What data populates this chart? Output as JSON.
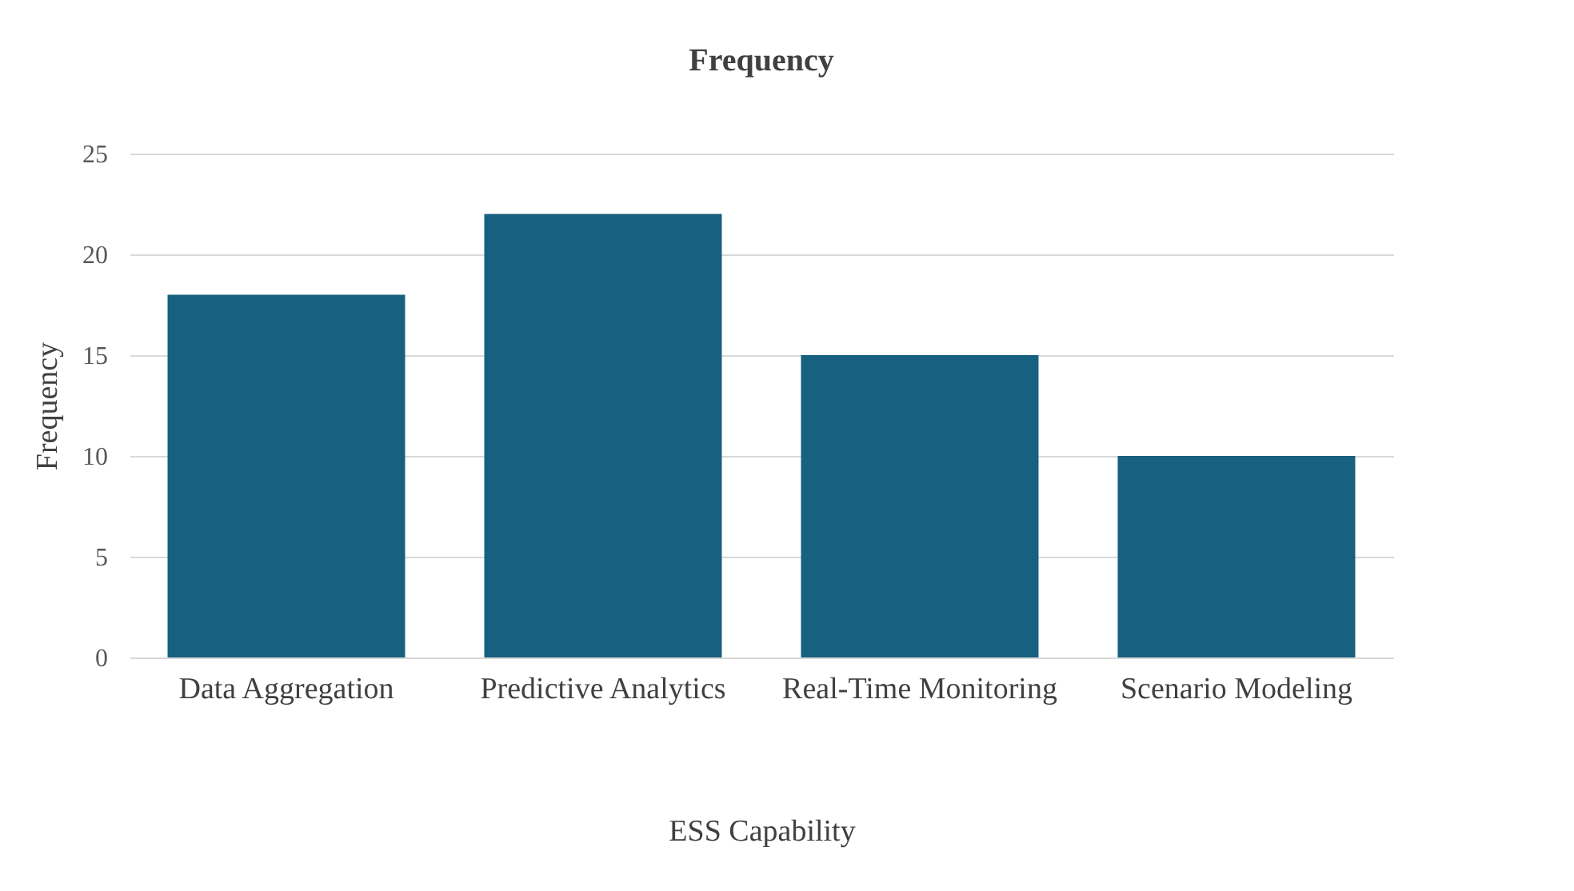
{
  "chart_data": {
    "type": "bar",
    "title": "Frequency",
    "xlabel": "ESS Capability",
    "ylabel": "Frequency",
    "categories": [
      "Data Aggregation",
      "Predictive Analytics",
      "Real-Time Monitoring",
      "Scenario Modeling"
    ],
    "values": [
      18,
      22,
      15,
      10
    ],
    "color": "#17607f",
    "ylim": [
      0,
      25
    ],
    "yticks": [
      0,
      5,
      10,
      15,
      20,
      25
    ],
    "grid": "y"
  }
}
